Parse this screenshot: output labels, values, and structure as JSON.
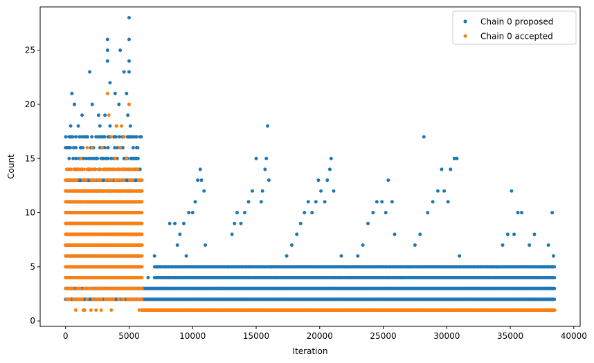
{
  "chart_data": {
    "type": "scatter",
    "title": "",
    "xlabel": "Iteration",
    "ylabel": "Count",
    "xlim": [
      -2000,
      40500
    ],
    "ylim": [
      -0.5,
      29
    ],
    "x_ticks": [
      0,
      5000,
      10000,
      15000,
      20000,
      25000,
      30000,
      35000,
      40000
    ],
    "y_ticks": [
      0,
      5,
      10,
      15,
      20,
      25
    ],
    "x_tick_labels": [
      "0",
      "5000",
      "10000",
      "15000",
      "20000",
      "25000",
      "30000",
      "35000",
      "40000"
    ],
    "y_tick_labels": [
      "0",
      "5",
      "10",
      "15",
      "20",
      "25"
    ],
    "grid": false,
    "legend": {
      "position": "top-right"
    },
    "series": [
      {
        "name": "Chain 0 proposed",
        "color": "#1f77b4",
        "points": [
          [
            100,
            2
          ],
          [
            400,
            4
          ],
          [
            700,
            7
          ],
          [
            1000,
            9
          ],
          [
            1200,
            11
          ],
          [
            1500,
            13
          ],
          [
            1800,
            14
          ],
          [
            2200,
            16
          ],
          [
            2600,
            17
          ],
          [
            3000,
            12
          ],
          [
            3300,
            26
          ],
          [
            3300,
            25
          ],
          [
            3300,
            24
          ],
          [
            3500,
            22
          ],
          [
            3900,
            21
          ],
          [
            4300,
            25
          ],
          [
            4600,
            23
          ],
          [
            5000,
            28
          ],
          [
            5000,
            26
          ],
          [
            5000,
            24
          ],
          [
            5000,
            23
          ],
          [
            5400,
            15
          ],
          [
            5800,
            14
          ],
          [
            5950,
            12
          ],
          [
            500,
            21
          ],
          [
            700,
            20
          ],
          [
            1300,
            19
          ],
          [
            1900,
            23
          ],
          [
            2100,
            20
          ],
          [
            2600,
            19
          ],
          [
            3100,
            19
          ],
          [
            4200,
            20
          ],
          [
            4800,
            21
          ],
          [
            4900,
            19
          ],
          [
            5100,
            18
          ],
          [
            400,
            18
          ],
          [
            1000,
            18
          ],
          [
            2700,
            18
          ],
          [
            3500,
            18
          ],
          [
            4000,
            18
          ],
          [
            5200,
            17
          ],
          [
            800,
            17
          ],
          [
            1600,
            17
          ],
          [
            2400,
            17
          ],
          [
            3800,
            17
          ],
          [
            4500,
            17
          ],
          [
            300,
            16
          ],
          [
            1200,
            16
          ],
          [
            2000,
            16
          ],
          [
            3000,
            16
          ],
          [
            4100,
            16
          ],
          [
            5600,
            16
          ],
          [
            600,
            15
          ],
          [
            1400,
            15
          ],
          [
            2500,
            15
          ],
          [
            3600,
            15
          ],
          [
            4700,
            15
          ],
          [
            5700,
            15
          ],
          [
            6500,
            4
          ],
          [
            7000,
            6
          ],
          [
            7200,
            5
          ],
          [
            7500,
            4
          ],
          [
            7900,
            5
          ],
          [
            8200,
            9
          ],
          [
            8600,
            9
          ],
          [
            9000,
            8
          ],
          [
            9300,
            9
          ],
          [
            9700,
            10
          ],
          [
            10000,
            10
          ],
          [
            10200,
            11
          ],
          [
            10400,
            13
          ],
          [
            10600,
            14
          ],
          [
            10700,
            13
          ],
          [
            10900,
            12
          ],
          [
            11000,
            7
          ],
          [
            9500,
            6
          ],
          [
            8800,
            7
          ],
          [
            8000,
            3
          ],
          [
            11500,
            4
          ],
          [
            12000,
            3
          ],
          [
            12400,
            4
          ],
          [
            12800,
            5
          ],
          [
            13100,
            8
          ],
          [
            13300,
            9
          ],
          [
            13500,
            10
          ],
          [
            13800,
            9
          ],
          [
            14100,
            10
          ],
          [
            14400,
            11
          ],
          [
            14700,
            12
          ],
          [
            15000,
            15
          ],
          [
            15400,
            11
          ],
          [
            15700,
            14
          ],
          [
            15800,
            15
          ],
          [
            15900,
            18
          ],
          [
            16000,
            13
          ],
          [
            15500,
            12
          ],
          [
            16200,
            5
          ],
          [
            17000,
            4
          ],
          [
            17400,
            6
          ],
          [
            17800,
            7
          ],
          [
            18200,
            8
          ],
          [
            18500,
            9
          ],
          [
            18800,
            10
          ],
          [
            19100,
            11
          ],
          [
            19400,
            10
          ],
          [
            19700,
            11
          ],
          [
            19900,
            13
          ],
          [
            20100,
            12
          ],
          [
            20400,
            11
          ],
          [
            20600,
            13
          ],
          [
            20800,
            14
          ],
          [
            20900,
            15
          ],
          [
            21100,
            12
          ],
          [
            21700,
            6
          ],
          [
            22000,
            5
          ],
          [
            22500,
            4
          ],
          [
            23000,
            6
          ],
          [
            23400,
            7
          ],
          [
            23800,
            9
          ],
          [
            24200,
            10
          ],
          [
            24500,
            11
          ],
          [
            24900,
            11
          ],
          [
            25200,
            10
          ],
          [
            25400,
            13
          ],
          [
            25700,
            11
          ],
          [
            25900,
            8
          ],
          [
            26500,
            4
          ],
          [
            27000,
            5
          ],
          [
            27500,
            7
          ],
          [
            27900,
            8
          ],
          [
            28200,
            17
          ],
          [
            28500,
            10
          ],
          [
            28900,
            11
          ],
          [
            29300,
            12
          ],
          [
            29600,
            14
          ],
          [
            29800,
            12
          ],
          [
            30100,
            11
          ],
          [
            30300,
            14
          ],
          [
            30600,
            15
          ],
          [
            30800,
            15
          ],
          [
            31000,
            6
          ],
          [
            32000,
            3
          ],
          [
            33000,
            4
          ],
          [
            33500,
            5
          ],
          [
            34000,
            5
          ],
          [
            34400,
            7
          ],
          [
            34800,
            8
          ],
          [
            35100,
            12
          ],
          [
            35300,
            8
          ],
          [
            35600,
            10
          ],
          [
            35900,
            10
          ],
          [
            36500,
            7
          ],
          [
            36900,
            8
          ],
          [
            37500,
            5
          ],
          [
            38000,
            7
          ],
          [
            38300,
            10
          ],
          [
            38400,
            6
          ]
        ]
      },
      {
        "name": "Chain 0 accepted",
        "color": "#ff7f0e",
        "points": [
          [
            200,
            2
          ],
          [
            500,
            3
          ],
          [
            800,
            1
          ],
          [
            1100,
            2
          ],
          [
            1400,
            1
          ],
          [
            1700,
            2
          ],
          [
            2000,
            1
          ],
          [
            2400,
            1
          ],
          [
            2800,
            1
          ],
          [
            3200,
            2
          ],
          [
            3300,
            21
          ],
          [
            3400,
            19
          ],
          [
            3600,
            17
          ],
          [
            4000,
            18
          ],
          [
            4300,
            16
          ],
          [
            4400,
            18
          ],
          [
            4600,
            17
          ],
          [
            5000,
            20
          ],
          [
            4800,
            15
          ],
          [
            3900,
            15
          ],
          [
            2900,
            16
          ],
          [
            2100,
            16
          ],
          [
            1700,
            16
          ],
          [
            1200,
            15
          ],
          [
            900,
            14
          ],
          [
            500,
            13
          ],
          [
            2600,
            14
          ],
          [
            3800,
            14
          ],
          [
            4600,
            14
          ],
          [
            5500,
            12
          ],
          [
            5900,
            11
          ],
          [
            1500,
            1
          ],
          [
            2500,
            2
          ],
          [
            3600,
            1
          ],
          [
            4200,
            2
          ],
          [
            5800,
            1
          ]
        ]
      }
    ],
    "dense_bands": {
      "proposed": [
        {
          "x_range": [
            0,
            6000
          ],
          "y_values": [
            2,
            3,
            4,
            5,
            6,
            7,
            8,
            9,
            10,
            11,
            12,
            13,
            14,
            15,
            16,
            17
          ],
          "step": 90,
          "jitter": [
            18,
            24
          ]
        },
        {
          "x_range": [
            6000,
            38500
          ],
          "y_values": [
            1,
            2,
            3
          ],
          "step": 60,
          "jitter": [
            0,
            0
          ]
        },
        {
          "x_range": [
            7000,
            38500
          ],
          "y_values": [
            4,
            5
          ],
          "step": 110,
          "jitter": [
            0,
            0
          ]
        }
      ],
      "accepted": [
        {
          "x_range": [
            0,
            6000
          ],
          "y_values": [
            2,
            3,
            4,
            5,
            6,
            7,
            8,
            9,
            10,
            11,
            12,
            13,
            14
          ],
          "step": 80,
          "jitter": [
            20,
            10
          ]
        },
        {
          "x_range": [
            6000,
            38500
          ],
          "y_values": [
            1
          ],
          "step": 40,
          "jitter": [
            0,
            0
          ]
        }
      ]
    }
  }
}
